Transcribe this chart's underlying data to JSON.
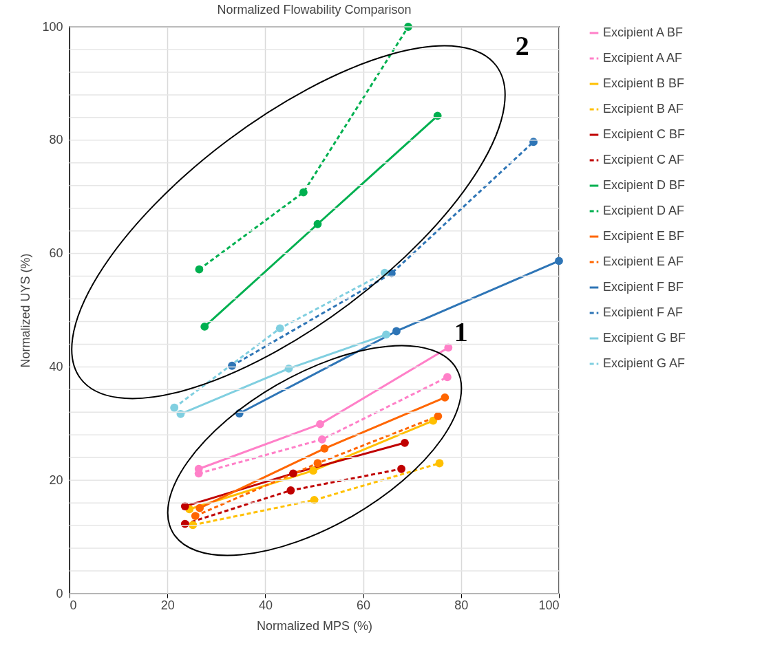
{
  "chart_data": {
    "type": "line",
    "title": "Normalized Flowability Comparison",
    "xlabel": "Normalized MPS (%)",
    "ylabel": "Normalized UYS (%)",
    "xlim": [
      0,
      100
    ],
    "xticks": [
      0,
      20,
      40,
      60,
      80,
      100
    ],
    "ylim": [
      0,
      100
    ],
    "yticks": [
      0,
      {
        "value": 4,
        "label": null
      },
      {
        "value": 8,
        "label": null
      },
      {
        "value": 12,
        "label": null
      },
      {
        "value": 16,
        "label": null
      },
      20,
      {
        "value": 24,
        "label": null
      },
      {
        "value": 28,
        "label": null
      },
      {
        "value": 32,
        "label": null
      },
      {
        "value": 36,
        "label": null
      },
      40,
      {
        "value": 44,
        "label": null
      },
      {
        "value": 48,
        "label": null
      },
      {
        "value": 52,
        "label": null
      },
      {
        "value": 56,
        "label": null
      },
      60,
      {
        "value": 64,
        "label": null
      },
      {
        "value": 68,
        "label": null
      },
      {
        "value": 72,
        "label": null
      },
      {
        "value": 76,
        "label": null
      },
      80,
      {
        "value": 84,
        "label": null
      },
      {
        "value": 88,
        "label": null
      },
      {
        "value": 92,
        "label": null
      },
      {
        "value": 96,
        "label": null
      },
      100
    ],
    "grid": true,
    "legend": "right",
    "marker": "circle",
    "annotations": [
      "1",
      "2"
    ],
    "series": [
      {
        "name": "Excipient A BF",
        "color": "#ff80c8",
        "line_style": "solid",
        "x": [
          26.4,
          51.2,
          77.4
        ],
        "values": [
          22.0,
          29.9,
          43.4
        ]
      },
      {
        "name": "Excipient A AF",
        "color": "#ff80c8",
        "line_style": "dashed",
        "x": [
          26.4,
          51.6,
          77.2
        ],
        "values": [
          21.2,
          27.2,
          38.2
        ]
      },
      {
        "name": "Excipient B BF",
        "color": "#ffc000",
        "line_style": "solid",
        "x": [
          24.5,
          49.8,
          74.3
        ],
        "values": [
          14.9,
          21.7,
          30.5
        ]
      },
      {
        "name": "Excipient B AF",
        "color": "#ffc000",
        "line_style": "dashed",
        "x": [
          25.2,
          50.0,
          75.6
        ],
        "values": [
          12.1,
          16.5,
          23.0
        ]
      },
      {
        "name": "Excipient C BF",
        "color": "#c00000",
        "line_style": "solid",
        "x": [
          23.6,
          45.7,
          68.5
        ],
        "values": [
          15.4,
          21.2,
          26.6
        ]
      },
      {
        "name": "Excipient C AF",
        "color": "#c00000",
        "line_style": "dashed",
        "x": [
          23.6,
          45.2,
          67.8
        ],
        "values": [
          12.3,
          18.2,
          22.0
        ]
      },
      {
        "name": "Excipient D BF",
        "color": "#00b050",
        "line_style": "solid",
        "x": [
          27.6,
          50.7,
          75.2
        ],
        "values": [
          47.1,
          65.2,
          84.3
        ]
      },
      {
        "name": "Excipient D AF",
        "color": "#00b050",
        "line_style": "dashed",
        "x": [
          26.5,
          47.8,
          69.2
        ],
        "values": [
          57.2,
          70.8,
          100.0
        ]
      },
      {
        "name": "Excipient E BF",
        "color": "#ff6600",
        "line_style": "solid",
        "x": [
          26.6,
          52.1,
          76.7
        ],
        "values": [
          15.1,
          25.6,
          34.6
        ]
      },
      {
        "name": "Excipient E AF",
        "color": "#ff6600",
        "line_style": "dashed",
        "x": [
          25.7,
          50.7,
          75.3
        ],
        "values": [
          13.7,
          23.0,
          31.3
        ]
      },
      {
        "name": "Excipient F BF",
        "color": "#2e75b6",
        "line_style": "solid",
        "x": [
          34.7,
          66.8,
          100.0
        ],
        "values": [
          31.8,
          46.3,
          58.7
        ]
      },
      {
        "name": "Excipient F AF",
        "color": "#2e75b6",
        "line_style": "dashed",
        "x": [
          33.2,
          65.8,
          94.8
        ],
        "values": [
          40.2,
          56.5,
          79.7
        ]
      },
      {
        "name": "Excipient G BF",
        "color": "#80cfe0",
        "line_style": "solid",
        "x": [
          22.7,
          44.8,
          64.7
        ],
        "values": [
          31.7,
          39.7,
          45.7
        ]
      },
      {
        "name": "Excipient G AF",
        "color": "#80cfe0",
        "line_style": "dashed",
        "x": [
          21.4,
          43.0,
          64.4
        ],
        "values": [
          32.8,
          46.8,
          56.6
        ]
      }
    ]
  }
}
